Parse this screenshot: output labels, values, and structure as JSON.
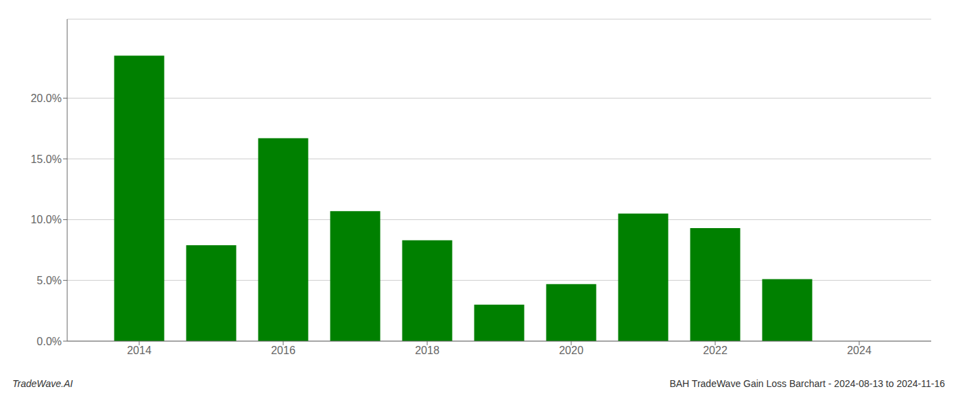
{
  "chart_data": {
    "type": "bar",
    "x": [
      2014,
      2015,
      2016,
      2017,
      2018,
      2019,
      2020,
      2021,
      2022,
      2023,
      2024
    ],
    "values": [
      0.235,
      0.079,
      0.167,
      0.107,
      0.083,
      0.03,
      0.047,
      0.105,
      0.093,
      0.051,
      0.0
    ],
    "color": "#008000",
    "xlim": [
      2013.0,
      2025.0
    ],
    "xticks": [
      2014,
      2016,
      2018,
      2020,
      2022,
      2024
    ],
    "ylim": [
      0,
      0.265
    ],
    "yticks": [
      {
        "value": 0.0,
        "label": "0.0%"
      },
      {
        "value": 0.05,
        "label": "5.0%"
      },
      {
        "value": 0.1,
        "label": "10.0%"
      },
      {
        "value": 0.15,
        "label": "15.0%"
      },
      {
        "value": 0.2,
        "label": "20.0%"
      }
    ],
    "grid": true,
    "annotations": [
      "TradeWave.AI",
      "BAH TradeWave Gain Loss Barchart - 2024-08-13 to 2024-11-16"
    ]
  }
}
